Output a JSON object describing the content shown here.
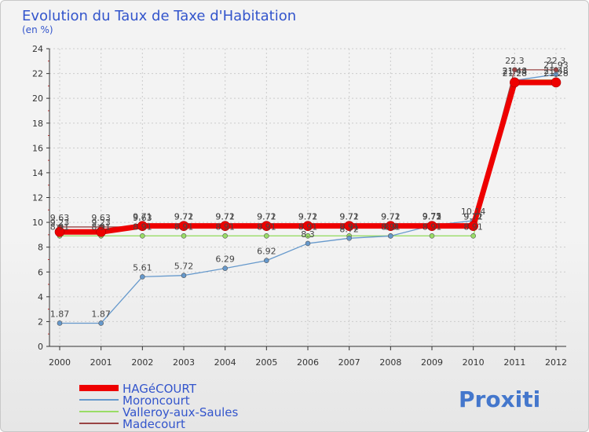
{
  "chart_data": {
    "type": "line",
    "title": "Evolution du Taux de Taxe d'Habitation",
    "ylabel": "(en %)",
    "xlabel": "",
    "ylim": [
      0,
      24
    ],
    "yticks": [
      "0",
      "2",
      "4",
      "6",
      "8",
      "10",
      "12",
      "14",
      "16",
      "18",
      "20",
      "22",
      "24"
    ],
    "categories": [
      "2000",
      "2001",
      "2002",
      "2003",
      "2004",
      "2005",
      "2006",
      "2007",
      "2008",
      "2009",
      "2010",
      "2011",
      "2012"
    ],
    "grid": true,
    "legend_position": "bottom-left",
    "series": [
      {
        "name": "HAGéCOURT",
        "color": "#ee0000",
        "values": [
          9.23,
          9.23,
          9.71,
          9.71,
          9.71,
          9.71,
          9.71,
          9.71,
          9.71,
          9.71,
          9.71,
          21.28,
          21.28
        ],
        "labels": [
          "9.23",
          "9.23",
          "9.71",
          "9.71",
          "9.71",
          "9.71",
          "9.71",
          "9.71",
          "9.71",
          "9.71",
          "9.71",
          "21.28",
          "21.28"
        ]
      },
      {
        "name": "Moroncourt",
        "color": "#6699cc",
        "values": [
          1.87,
          1.87,
          5.61,
          5.72,
          6.29,
          6.92,
          8.3,
          8.72,
          8.9,
          9.75,
          10.14,
          21.44,
          21.93
        ],
        "labels": [
          "1.87",
          "1.87",
          "5.61",
          "5.72",
          "6.29",
          "6.92",
          "8.3",
          "8.72",
          "8.9",
          "9.75",
          "10.14",
          "21.44",
          "21.93"
        ]
      },
      {
        "name": "Valleroy-aux-Saules",
        "color": "#99dd66",
        "values": [
          8.91,
          8.91,
          8.91,
          8.91,
          8.91,
          8.91,
          8.91,
          8.91,
          8.91,
          8.91,
          8.91,
          21.48,
          21.48
        ],
        "labels": [
          "8.91",
          "8.91",
          "8.91",
          "8.91",
          "8.91",
          "8.91",
          "8.91",
          "8.91",
          "8.91",
          "8.91",
          "8.91",
          "21.48",
          "21.48"
        ]
      },
      {
        "name": "Madecourt",
        "color": "#994444",
        "values": [
          9.63,
          9.63,
          9.63,
          9.72,
          9.72,
          9.72,
          9.72,
          9.72,
          9.72,
          9.72,
          9.72,
          22.3,
          22.3
        ],
        "labels": [
          "9.63",
          "9.63",
          "9.63",
          "9.72",
          "9.72",
          "9.72",
          "9.72",
          "9.72",
          "9.72",
          "9.72",
          "9.72",
          "22.3",
          "22.3"
        ]
      }
    ]
  },
  "logo": {
    "text": "Proxiti"
  },
  "colors": {
    "title": "#3355cc",
    "legend_text": "#3355cc",
    "axis": "#333333",
    "grid": "#cccccc"
  }
}
